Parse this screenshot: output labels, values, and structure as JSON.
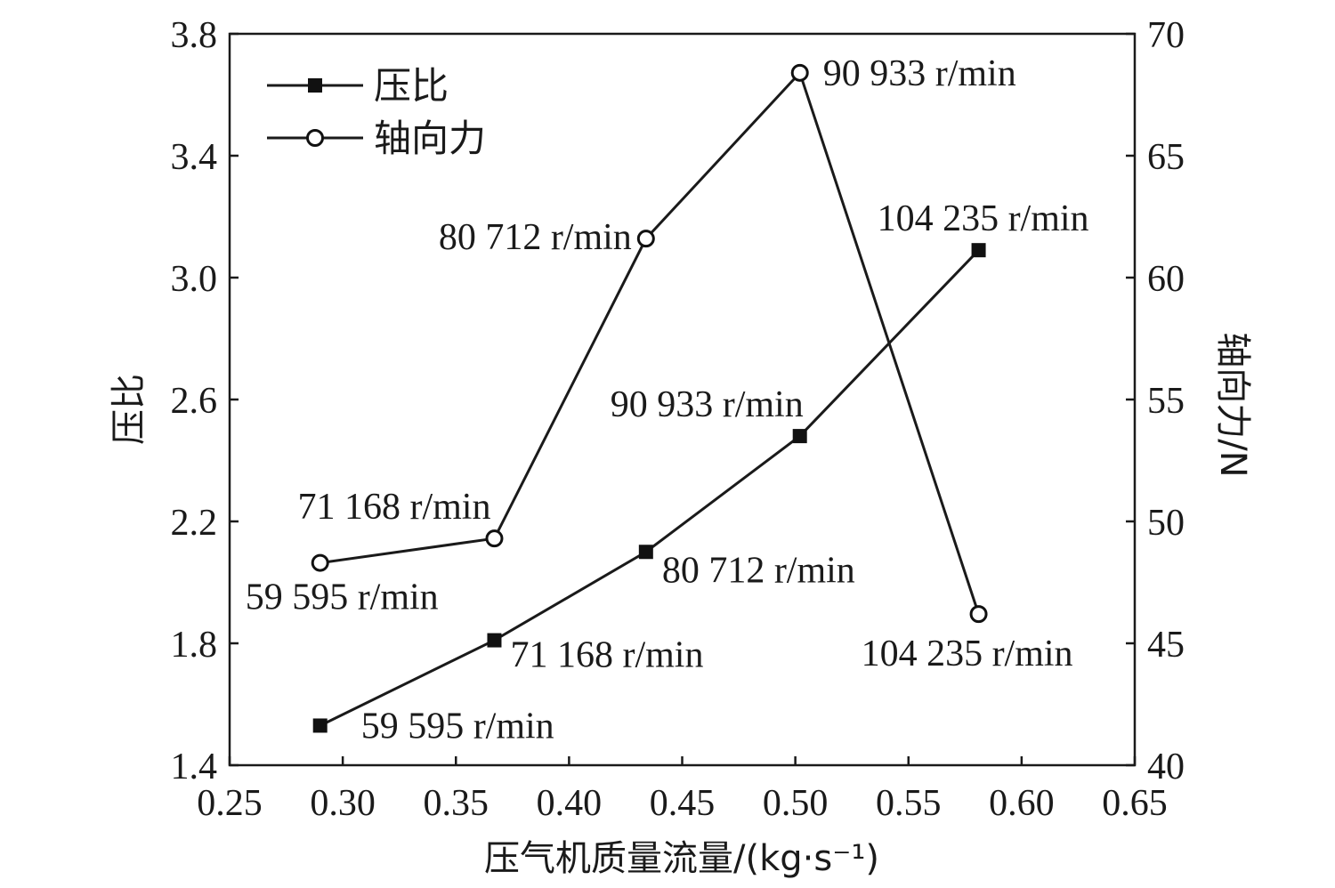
{
  "chart_data": {
    "type": "line",
    "xlabel": "压气机质量流量/(kg·s⁻¹)",
    "ylabel_left": "压比",
    "ylabel_right": "轴向力/N",
    "xlim": [
      0.25,
      0.65
    ],
    "xticks": [
      "0.25",
      "0.30",
      "0.35",
      "0.40",
      "0.45",
      "0.50",
      "0.55",
      "0.60",
      "0.65"
    ],
    "ylim_left": [
      1.4,
      3.8
    ],
    "yticks_left": [
      "1.4",
      "1.8",
      "2.2",
      "2.6",
      "3.0",
      "3.4",
      "3.8"
    ],
    "ylim_right": [
      40,
      70
    ],
    "yticks_right": [
      "40",
      "45",
      "50",
      "55",
      "60",
      "65",
      "70"
    ],
    "legend": {
      "position": "top-left"
    },
    "series": [
      {
        "name": "压比",
        "axis": "left",
        "marker": "filled-square",
        "x": [
          0.29,
          0.367,
          0.434,
          0.502,
          0.581
        ],
        "y": [
          1.53,
          1.81,
          2.1,
          2.48,
          3.09
        ],
        "labels": [
          "59 595 r/min",
          "71 168 r/min",
          "80 712 r/min",
          "90 933 r/min",
          "104 235 r/min"
        ]
      },
      {
        "name": "轴向力",
        "axis": "right",
        "marker": "open-circle",
        "x": [
          0.29,
          0.367,
          0.434,
          0.502,
          0.581
        ],
        "y": [
          48.3,
          49.3,
          61.6,
          68.4,
          46.2
        ],
        "labels": [
          "59 595 r/min",
          "71 168 r/min",
          "80 712 r/min",
          "90 933 r/min",
          "104 235 r/min"
        ]
      }
    ]
  }
}
